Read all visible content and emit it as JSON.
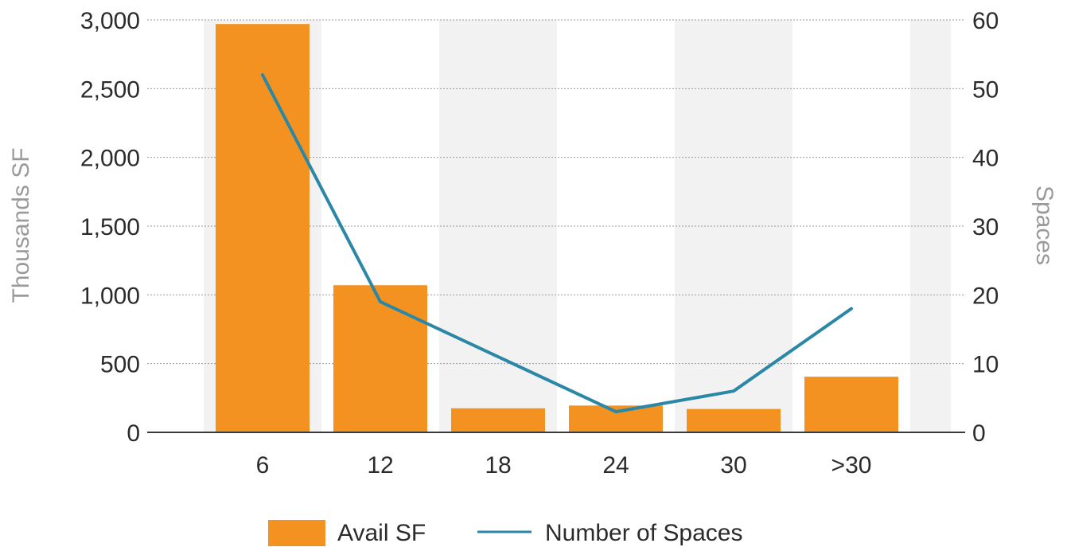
{
  "chart_data": {
    "type": "bar",
    "categories": [
      "6",
      "12",
      "18",
      "24",
      "30",
      ">30"
    ],
    "series": [
      {
        "name": "Avail SF",
        "type": "bar",
        "axis": "left",
        "values": [
          2970,
          1070,
          175,
          195,
          170,
          405
        ],
        "color": "#f39220"
      },
      {
        "name": "Number of Spaces",
        "type": "line",
        "axis": "right",
        "values": [
          52,
          19,
          11,
          3,
          6,
          18
        ],
        "color": "#2b87a6"
      }
    ],
    "ylabel": "Thousands SF",
    "y2label": "Spaces",
    "ylim": [
      0,
      3000
    ],
    "y2lim": [
      0,
      60
    ],
    "yticks": [
      "0",
      "500",
      "1,000",
      "1,500",
      "2,000",
      "2,500",
      "3,000"
    ],
    "y2ticks": [
      "0",
      "10",
      "20",
      "30",
      "40",
      "50",
      "60"
    ],
    "grid": true,
    "alternating_band_color": "#f2f2f2",
    "legend_position": "bottom"
  }
}
